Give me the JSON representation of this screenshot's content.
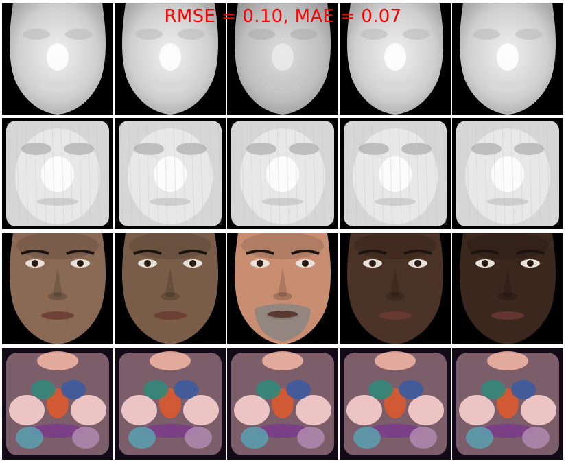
{
  "figure": {
    "title": "RMSE = 0.10, MAE = 0.07",
    "title_color": "#ff0000",
    "rows": [
      {
        "kind": "depth-ground-truth"
      },
      {
        "kind": "depth-predicted"
      },
      {
        "kind": "rgb-photo"
      },
      {
        "kind": "normal-map-predicted"
      }
    ],
    "columns": [
      {
        "subject": "asian-male",
        "skin": "#8a6a55",
        "dark": false
      },
      {
        "subject": "asian-male",
        "skin": "#7a5d48",
        "dark": false
      },
      {
        "subject": "bearded-male",
        "skin": "#c98e72",
        "dark": false,
        "beard": true
      },
      {
        "subject": "female",
        "skin": "#4a3226",
        "dark": true
      },
      {
        "subject": "female",
        "skin": "#3a271d",
        "dark": true
      }
    ]
  }
}
